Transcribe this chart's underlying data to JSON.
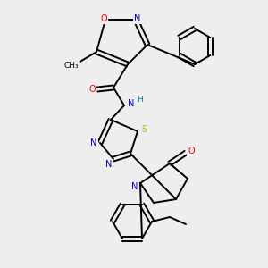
{
  "bg_color": "#eeeeee",
  "bond_color": "#000000",
  "atom_colors": {
    "O": "#ff0000",
    "N": "#0000cc",
    "S": "#b8b800",
    "H": "#008080",
    "C": "#000000"
  }
}
